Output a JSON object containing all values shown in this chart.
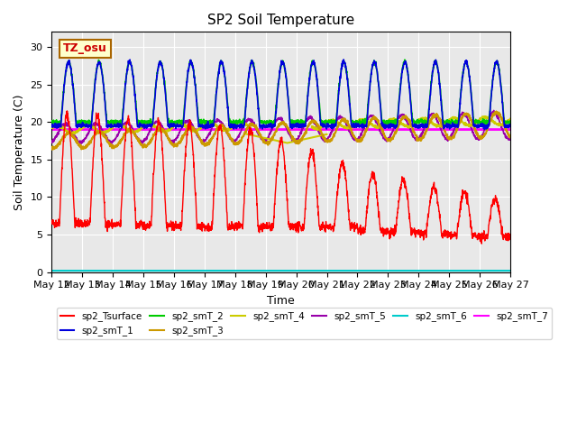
{
  "title": "SP2 Soil Temperature",
  "ylabel": "Soil Temperature (C)",
  "xlabel": "Time",
  "ylim": [
    0,
    32
  ],
  "yticks": [
    0,
    5,
    10,
    15,
    20,
    25,
    30
  ],
  "x_tick_labels": [
    "May 12",
    "May 13",
    "May 14",
    "May 15",
    "May 16",
    "May 17",
    "May 18",
    "May 19",
    "May 20",
    "May 21",
    "May 22",
    "May 23",
    "May 24",
    "May 25",
    "May 26",
    "May 27"
  ],
  "n_days": 15,
  "n_pts_per_day": 144,
  "tz_label": "TZ_osu",
  "colors": {
    "sp2_Tsurface": "#ff0000",
    "sp2_smT_1": "#0000dd",
    "sp2_smT_2": "#00cc00",
    "sp2_smT_3": "#cc9900",
    "sp2_smT_4": "#cccc00",
    "sp2_smT_5": "#9900aa",
    "sp2_smT_6": "#00cccc",
    "sp2_smT_7": "#ff00ff"
  },
  "background_color": "#e8e8e8",
  "fig_background": "#ffffff",
  "grid_color": "#ffffff"
}
